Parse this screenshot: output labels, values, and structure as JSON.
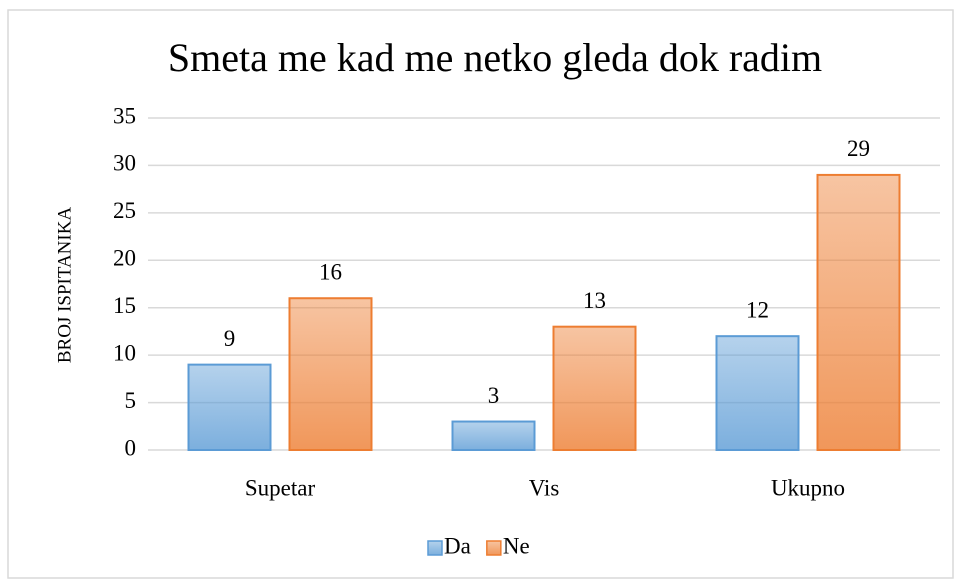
{
  "chart_data": {
    "type": "bar",
    "title": "Smeta me kad me netko gleda dok radim",
    "y_label": "BROJ ISPITANIKA",
    "categories": [
      "Supetar",
      "Vis",
      "Ukupno"
    ],
    "series": [
      {
        "name": "Da",
        "color": "#5b9bd5",
        "values": [
          9,
          3,
          12
        ]
      },
      {
        "name": "Ne",
        "color": "#ed7d31",
        "values": [
          16,
          13,
          29
        ]
      }
    ],
    "ylim": [
      0,
      35
    ],
    "yticks": [
      0,
      5,
      10,
      15,
      20,
      25,
      30,
      35
    ],
    "grid": true,
    "legend": "bottom"
  }
}
